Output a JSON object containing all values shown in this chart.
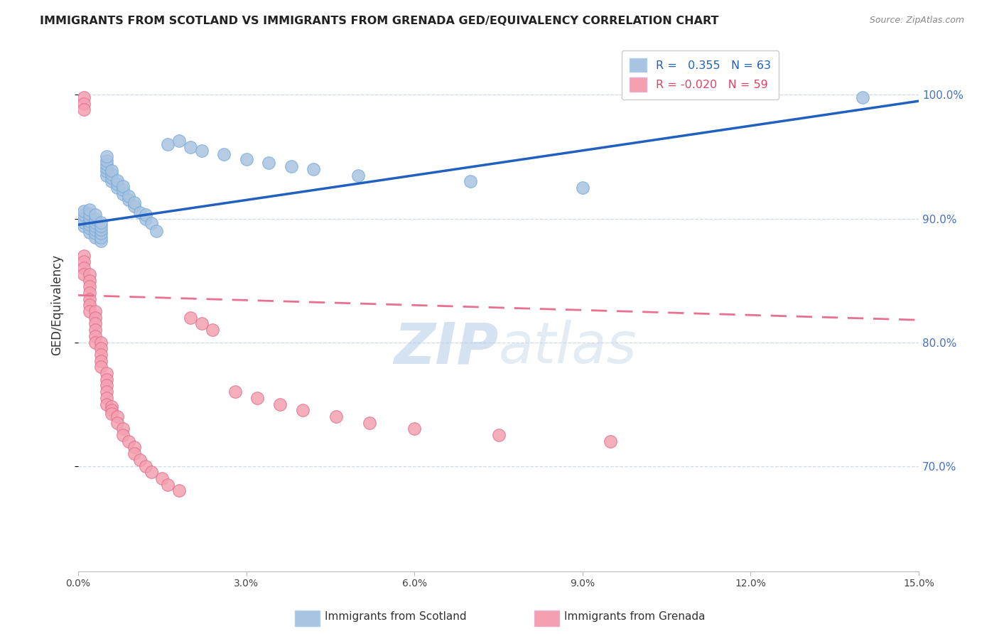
{
  "title": "IMMIGRANTS FROM SCOTLAND VS IMMIGRANTS FROM GRENADA GED/EQUIVALENCY CORRELATION CHART",
  "source": "Source: ZipAtlas.com",
  "ylabel": "GED/Equivalency",
  "yaxis_labels": [
    "100.0%",
    "90.0%",
    "80.0%",
    "70.0%"
  ],
  "yaxis_values": [
    1.0,
    0.9,
    0.8,
    0.7
  ],
  "xmin": 0.0,
  "xmax": 0.15,
  "ymin": 0.615,
  "ymax": 1.045,
  "scotland_R": 0.355,
  "scotland_N": 63,
  "grenada_R": -0.02,
  "grenada_N": 59,
  "scotland_color": "#a8c4e0",
  "grenada_color": "#f4a0b0",
  "scotland_line_color": "#2060c0",
  "grenada_line_color": "#e87090",
  "background_color": "#ffffff",
  "grid_color": "#d0d8e8",
  "watermark_color": "#ccdcee",
  "legend_scotland": "Immigrants from Scotland",
  "legend_grenada": "Immigrants from Grenada",
  "scotland_x": [
    0.001,
    0.001,
    0.001,
    0.001,
    0.001,
    0.002,
    0.002,
    0.002,
    0.002,
    0.002,
    0.002,
    0.002,
    0.003,
    0.003,
    0.003,
    0.003,
    0.003,
    0.003,
    0.003,
    0.004,
    0.004,
    0.004,
    0.004,
    0.004,
    0.004,
    0.005,
    0.005,
    0.005,
    0.005,
    0.005,
    0.005,
    0.006,
    0.006,
    0.006,
    0.006,
    0.007,
    0.007,
    0.007,
    0.008,
    0.008,
    0.008,
    0.009,
    0.009,
    0.01,
    0.01,
    0.011,
    0.012,
    0.012,
    0.013,
    0.014,
    0.016,
    0.018,
    0.02,
    0.022,
    0.026,
    0.03,
    0.034,
    0.038,
    0.042,
    0.05,
    0.07,
    0.09,
    0.14
  ],
  "scotland_y": [
    0.894,
    0.897,
    0.9,
    0.903,
    0.906,
    0.889,
    0.892,
    0.895,
    0.898,
    0.901,
    0.904,
    0.907,
    0.885,
    0.888,
    0.891,
    0.894,
    0.897,
    0.9,
    0.903,
    0.882,
    0.885,
    0.888,
    0.891,
    0.894,
    0.897,
    0.935,
    0.938,
    0.941,
    0.944,
    0.947,
    0.95,
    0.93,
    0.933,
    0.936,
    0.939,
    0.925,
    0.928,
    0.931,
    0.92,
    0.923,
    0.926,
    0.915,
    0.918,
    0.91,
    0.913,
    0.905,
    0.9,
    0.903,
    0.896,
    0.89,
    0.96,
    0.963,
    0.958,
    0.955,
    0.952,
    0.948,
    0.945,
    0.942,
    0.94,
    0.935,
    0.93,
    0.925,
    0.998
  ],
  "grenada_x": [
    0.001,
    0.001,
    0.001,
    0.001,
    0.001,
    0.001,
    0.001,
    0.002,
    0.002,
    0.002,
    0.002,
    0.002,
    0.002,
    0.002,
    0.003,
    0.003,
    0.003,
    0.003,
    0.003,
    0.003,
    0.004,
    0.004,
    0.004,
    0.004,
    0.004,
    0.005,
    0.005,
    0.005,
    0.005,
    0.005,
    0.005,
    0.006,
    0.006,
    0.006,
    0.007,
    0.007,
    0.008,
    0.008,
    0.009,
    0.01,
    0.01,
    0.011,
    0.012,
    0.013,
    0.015,
    0.016,
    0.018,
    0.02,
    0.022,
    0.024,
    0.028,
    0.032,
    0.036,
    0.04,
    0.046,
    0.052,
    0.06,
    0.075,
    0.095
  ],
  "grenada_y": [
    0.998,
    0.993,
    0.988,
    0.87,
    0.865,
    0.86,
    0.855,
    0.855,
    0.85,
    0.845,
    0.84,
    0.835,
    0.83,
    0.825,
    0.825,
    0.82,
    0.815,
    0.81,
    0.805,
    0.8,
    0.8,
    0.795,
    0.79,
    0.785,
    0.78,
    0.775,
    0.77,
    0.765,
    0.76,
    0.755,
    0.75,
    0.748,
    0.745,
    0.742,
    0.74,
    0.735,
    0.73,
    0.725,
    0.72,
    0.715,
    0.71,
    0.705,
    0.7,
    0.695,
    0.69,
    0.685,
    0.68,
    0.82,
    0.815,
    0.81,
    0.76,
    0.755,
    0.75,
    0.745,
    0.74,
    0.735,
    0.73,
    0.725,
    0.72
  ],
  "sc_line_x0": 0.0,
  "sc_line_x1": 0.15,
  "sc_line_y0": 0.895,
  "sc_line_y1": 0.995,
  "gr_line_x0": 0.0,
  "gr_line_x1": 0.15,
  "gr_line_y0": 0.838,
  "gr_line_y1": 0.818
}
